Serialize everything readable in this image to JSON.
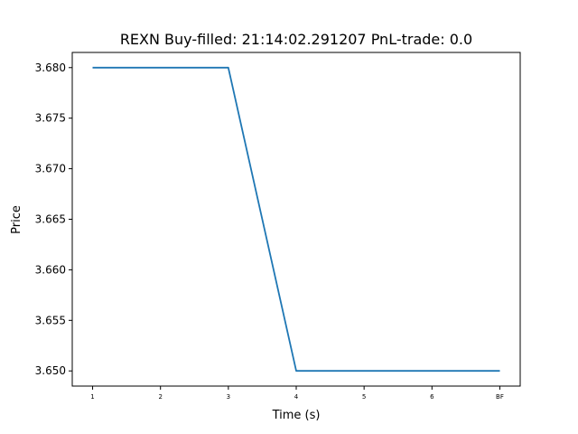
{
  "chart_data": {
    "type": "line",
    "title": "REXN  Buy-filled:  21:14:02.291207  PnL-trade:  0.0",
    "xlabel": "Time (s)",
    "ylabel": "Price",
    "categories": [
      "1",
      "2",
      "3",
      "4",
      "5",
      "6",
      "BF"
    ],
    "x": [
      1,
      2,
      3,
      4,
      5,
      6,
      7
    ],
    "series": [
      {
        "values": [
          3.68,
          3.68,
          3.68,
          3.65,
          3.65,
          3.65,
          3.65
        ],
        "color": "#1f77b4"
      }
    ],
    "yticks": [
      "3.650",
      "3.655",
      "3.660",
      "3.665",
      "3.670",
      "3.675",
      "3.680"
    ],
    "ylim": [
      3.6485,
      3.6815
    ],
    "xlim": [
      0.7,
      7.3
    ],
    "grid": false
  }
}
